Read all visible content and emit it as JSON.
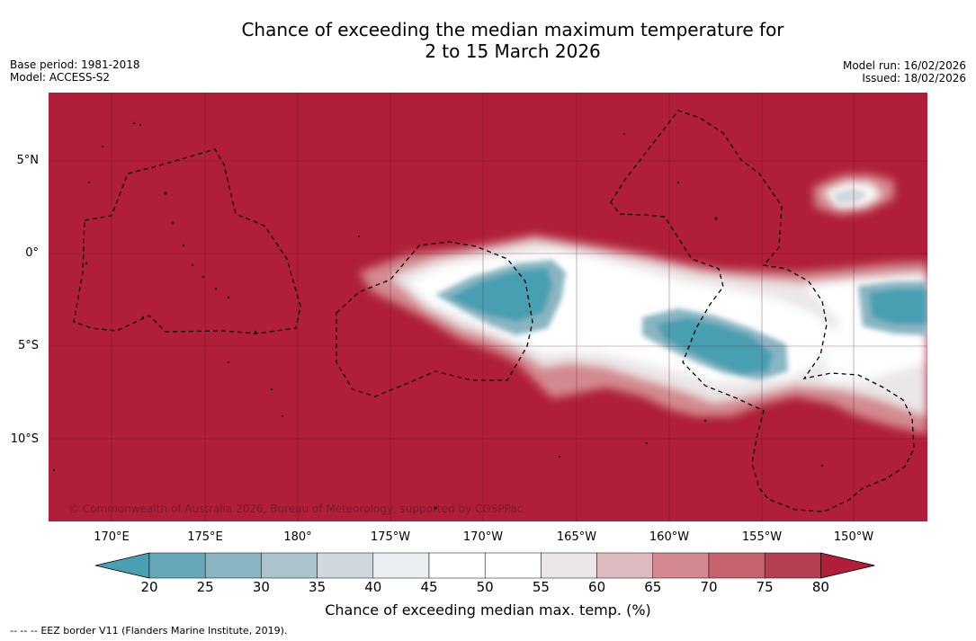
{
  "title": {
    "line1": "Chance of exceeding the median maximum temperature for",
    "line2": "2 to 15 March 2026"
  },
  "meta_left": {
    "base_period": "Base period: 1981-2018",
    "model": "Model: ACCESS-S2"
  },
  "meta_right": {
    "model_run": "Model run: 16/02/2026",
    "issued": "Issued: 18/02/2026"
  },
  "map": {
    "lat_labels": [
      "5°N",
      "0°",
      "5°S",
      "10°S"
    ],
    "lon_labels": [
      "170°E",
      "175°E",
      "180°",
      "175°W",
      "170°W",
      "165°W",
      "160°W",
      "155°W",
      "150°W"
    ],
    "copyright": "© Commonwealth of Australia 2026, Bureau of Meteorology, supported by COSPPac",
    "background_color": "#b01e39"
  },
  "colorbar": {
    "ticks": [
      "20",
      "25",
      "30",
      "35",
      "40",
      "45",
      "50",
      "55",
      "60",
      "65",
      "70",
      "75",
      "80"
    ],
    "colors": [
      "#67a8b8",
      "#89b5c2",
      "#abc4cb",
      "#cfd8dc",
      "#eceff1",
      "#ffffff",
      "#ffffff",
      "#ebe6e7",
      "#debbc0",
      "#d3898f",
      "#c4636e",
      "#b53f52"
    ],
    "below_color": "#4a9fb2",
    "above_color": "#b01e39",
    "label": "Chance of exceeding median max. temp. (%)"
  },
  "legend": {
    "symbol": "--  --  --",
    "text": "EEZ border V11 (Flanders Marine Institute, 2019)."
  }
}
